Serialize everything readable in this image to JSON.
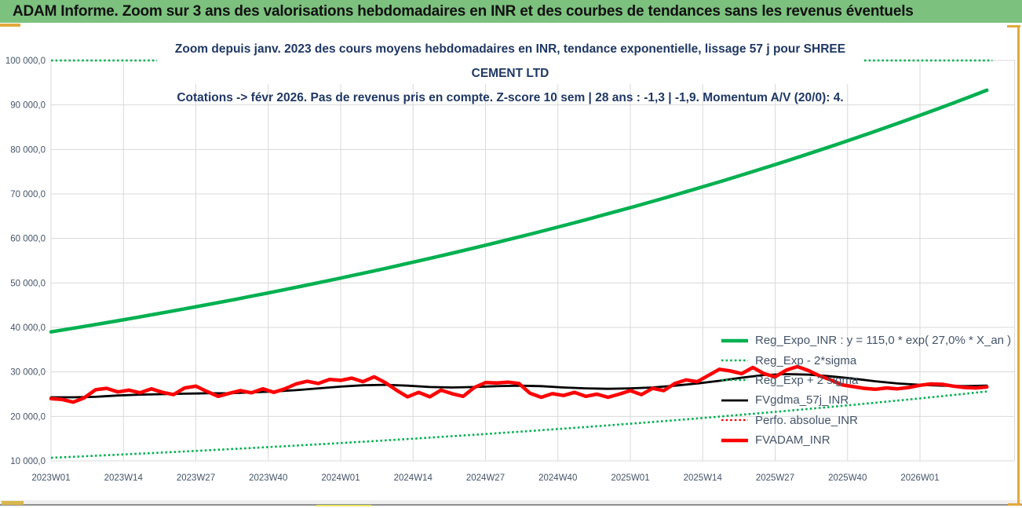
{
  "header": {
    "title": "ADAM Informe. Zoom sur 3 ans des valorisations hebdomadaires en INR et des courbes de tendances sans les revenus éventuels",
    "bg_color": "#7cc17e"
  },
  "chart": {
    "title_line1": "Zoom depuis janv. 2023 des cours moyens hebdomadaires en INR, tendance exponentielle, lissage 57 j pour SHREE CEMENT LTD",
    "title_line2": "Cotations -> févr 2026.  Pas de revenus pris en compte. Z-score 10 sem | 28 ans : -1,3 | -1,9. Momentum A/V (20/0): 4.",
    "title_color": "#1F3864",
    "axis_label_color": "#44546A",
    "grid_color": "#D9D9D9",
    "selection_border_color": "#E2A93B",
    "accent_green": "#00B050",
    "accent_red": "#FF0000"
  },
  "legend": [
    {
      "label": "Reg_Expo_INR : y = 115,0 * exp( 27,0% *  X_an )",
      "color": "#00B050",
      "style": "solid",
      "width": 4.5
    },
    {
      "label": "Reg_Exp - 2*sigma",
      "color": "#00B050",
      "style": "dotted",
      "width": 2.6
    },
    {
      "label": "Reg_Exp + 2 sigma",
      "color": "#00B050",
      "style": "dotted",
      "width": 2.6
    },
    {
      "label": "FVgdma_57j_INR",
      "color": "#000000",
      "style": "solid",
      "width": 2.8
    },
    {
      "label": "Perfo. absolue_INR",
      "color": "#FF0000",
      "style": "dotted",
      "width": 2.2
    },
    {
      "label": "FVADAM_INR",
      "color": "#FF0000",
      "style": "solid",
      "width": 4.5
    }
  ],
  "chart_data": {
    "type": "line",
    "title": "Zoom depuis janv. 2023 des cours moyens hebdomadaires en INR, tendance exponentielle, lissage 57 j pour SHREE CEMENT LTD",
    "subtitle": "Cotations -> févr 2026.  Pas de revenus pris en compte. Z-score 10 sem | 28 ans : -1,3 | -1,9. Momentum A/V (20/0): 4.",
    "xlabel": "",
    "ylabel": "",
    "x_unit": "weeks since 2023W01",
    "ylim": [
      10000,
      100000
    ],
    "xlim_weeks": [
      0,
      173
    ],
    "grid": true,
    "legend_position": "inside lower right",
    "y_ticks": [
      {
        "value": 100000,
        "label": "100 000,0"
      },
      {
        "value": 90000,
        "label": "90 000,0"
      },
      {
        "value": 80000,
        "label": "80 000,0"
      },
      {
        "value": 70000,
        "label": "70 000,0"
      },
      {
        "value": 60000,
        "label": "60 000,0"
      },
      {
        "value": 50000,
        "label": "50 000,0"
      },
      {
        "value": 40000,
        "label": "40 000,0"
      },
      {
        "value": 30000,
        "label": "30 000,0"
      },
      {
        "value": 20000,
        "label": "20 000,0"
      },
      {
        "value": 10000,
        "label": "10 000,0"
      }
    ],
    "x_ticks": [
      {
        "week": 0,
        "label": "2023W01"
      },
      {
        "week": 13,
        "label": "2023W14"
      },
      {
        "week": 26,
        "label": "2023W27"
      },
      {
        "week": 39,
        "label": "2023W40"
      },
      {
        "week": 52,
        "label": "2024W01"
      },
      {
        "week": 65,
        "label": "2024W14"
      },
      {
        "week": 78,
        "label": "2024W27"
      },
      {
        "week": 91,
        "label": "2024W40"
      },
      {
        "week": 104,
        "label": "2025W01"
      },
      {
        "week": 117,
        "label": "2025W14"
      },
      {
        "week": 130,
        "label": "2025W27"
      },
      {
        "week": 143,
        "label": "2025W40"
      },
      {
        "week": 156,
        "label": "2026W01"
      }
    ],
    "series": [
      {
        "name": "Reg_Exp + 2 sigma",
        "type": "constant",
        "value": 100000,
        "clipped_at_axis_max": true,
        "week_start": 0,
        "week_end": 169,
        "style": "dotted",
        "color": "#00B050",
        "width": 2.6
      },
      {
        "name": "Reg_Exp - 2*sigma",
        "type": "exponential",
        "y0": 10700,
        "annual_growth": 0.27,
        "week_start": 0,
        "week_end": 168,
        "style": "dotted",
        "color": "#00B050",
        "width": 2.6
      },
      {
        "name": "FVgdma_57j_INR",
        "type": "points",
        "week_start": 0,
        "week_step": 4,
        "style": "solid",
        "color": "#000000",
        "width": 2.8,
        "values": [
          24300,
          24300,
          24400,
          24700,
          24900,
          25000,
          25100,
          25200,
          25200,
          25400,
          25600,
          25900,
          26300,
          26700,
          27000,
          27100,
          26900,
          26600,
          26500,
          26600,
          26800,
          26900,
          26800,
          26500,
          26300,
          26200,
          26300,
          26500,
          26900,
          27400,
          28000,
          28700,
          29300,
          29500,
          29400,
          29000,
          28500,
          27900,
          27400,
          27100,
          26900,
          26800,
          26900
        ]
      },
      {
        "name": "FVADAM_INR",
        "type": "points",
        "week_start": 0,
        "week_step": 2,
        "style": "solid",
        "color": "#FF0000",
        "width": 4.5,
        "values": [
          24000,
          23800,
          23200,
          24200,
          26000,
          26300,
          25500,
          25900,
          25300,
          26200,
          25400,
          24900,
          26400,
          26800,
          25600,
          24500,
          25200,
          25800,
          25300,
          26200,
          25400,
          26200,
          27300,
          27900,
          27400,
          28300,
          28100,
          28600,
          27800,
          28900,
          27600,
          25900,
          24400,
          25400,
          24400,
          25900,
          25100,
          24500,
          26500,
          27600,
          27500,
          27700,
          27400,
          25200,
          24300,
          25100,
          24700,
          25400,
          24500,
          25000,
          24300,
          25000,
          25800,
          24900,
          26300,
          25800,
          27400,
          28200,
          27800,
          29200,
          30600,
          30200,
          29600,
          31000,
          29600,
          28900,
          30400,
          31200,
          30300,
          29100,
          28200,
          27100,
          26700,
          26300,
          26100,
          26400,
          26200,
          26500,
          27000,
          27300,
          27200,
          26800,
          26500,
          26400,
          26600
        ]
      },
      {
        "name": "Reg_Expo_INR",
        "type": "exponential",
        "y0": 39000,
        "annual_growth": 0.27,
        "week_start": 0,
        "week_end": 168,
        "style": "solid",
        "color": "#00B050",
        "width": 4.5,
        "equation": "y = 115,0 * exp( 27,0% * X_an )"
      },
      {
        "name": "Perfo. absolue_INR",
        "type": "points",
        "week_start": 0,
        "week_step": 2,
        "style": "dotted",
        "color": "#FF0000",
        "width": 2.2,
        "visible": false,
        "values": []
      }
    ]
  }
}
